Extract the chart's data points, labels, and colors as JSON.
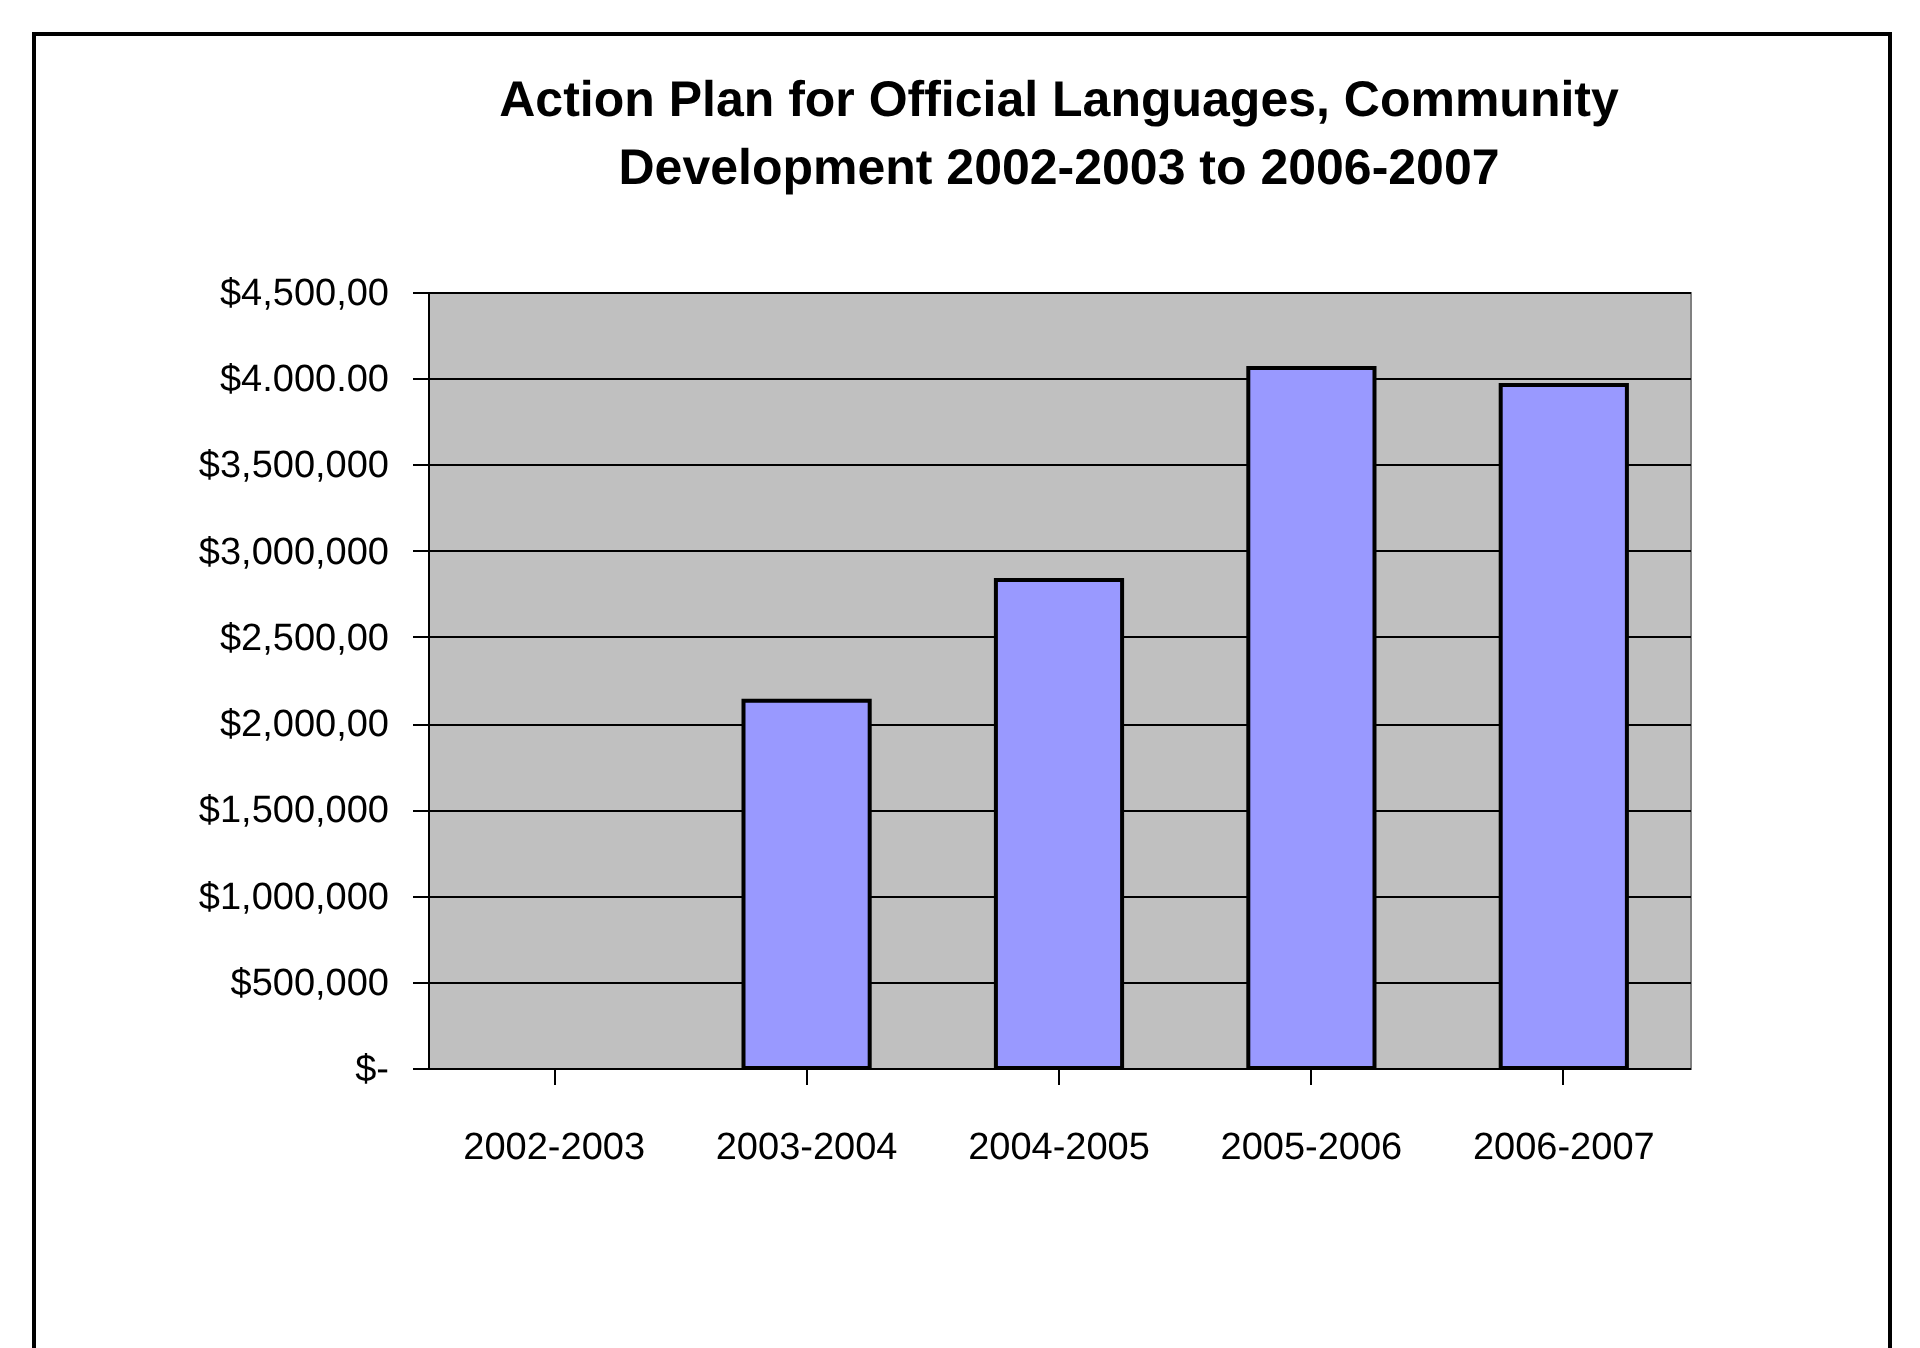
{
  "chart_data": {
    "type": "bar",
    "title": "Action Plan for Official Languages, Community Development 2002-2003 to 2006-2007",
    "categories": [
      "2002-2003",
      "2003-2004",
      "2004-2005",
      "2005-2006",
      "2006-2007"
    ],
    "values": [
      null,
      2130000,
      2830000,
      4060000,
      3960000
    ],
    "color": "#9999ff",
    "ylim": [
      0,
      4500000
    ],
    "yticks": [
      {
        "value": 0,
        "label": "$-"
      },
      {
        "value": 500000,
        "label": "$500,000"
      },
      {
        "value": 1000000,
        "label": "$1,000,000"
      },
      {
        "value": 1500000,
        "label": "$1,500,000"
      },
      {
        "value": 2000000,
        "label": "$2,000,00"
      },
      {
        "value": 2500000,
        "label": "$2,500,00"
      },
      {
        "value": 3000000,
        "label": "$3,000,000"
      },
      {
        "value": 3500000,
        "label": "$3,500,000"
      },
      {
        "value": 4000000,
        "label": "$4.000.00"
      },
      {
        "value": 4500000,
        "label": "$4,500,00"
      }
    ],
    "grid": "y"
  }
}
